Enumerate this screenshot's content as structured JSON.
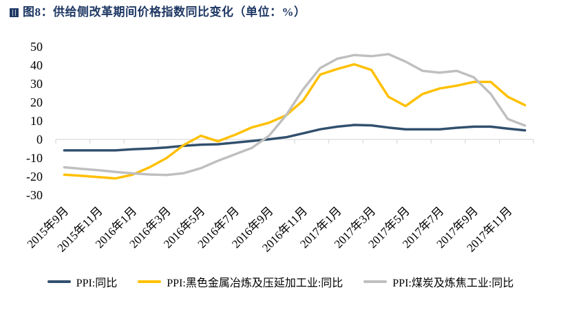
{
  "title": {
    "text": "图8：供给侧改革期间价格指数同比变化（单位：%）"
  },
  "colors": {
    "title_navy": "#1f3864",
    "axis_line": "#d9d9d9",
    "tick_text": "#000000"
  },
  "legend": {
    "items": [
      {
        "label": "PPI:同比",
        "color": "#32506e"
      },
      {
        "label": "PPI:黑色金属冶炼及压延加工业:同比",
        "color": "#ffc000"
      },
      {
        "label": "PPI:煤炭及炼焦工业:同比",
        "color": "#bfbfbf"
      }
    ]
  },
  "chart_data": {
    "type": "line",
    "title": "图8：供给侧改革期间价格指数同比变化（单位：%）",
    "unit": "%",
    "x": [
      "2015年9月",
      "2015年10月",
      "2015年11月",
      "2015年12月",
      "2016年1月",
      "2016年2月",
      "2016年3月",
      "2016年4月",
      "2016年5月",
      "2016年6月",
      "2016年7月",
      "2016年8月",
      "2016年9月",
      "2016年10月",
      "2016年11月",
      "2016年12月",
      "2017年1月",
      "2017年2月",
      "2017年3月",
      "2017年4月",
      "2017年5月",
      "2017年6月",
      "2017年7月",
      "2017年8月",
      "2017年9月",
      "2017年10月",
      "2017年11月",
      "2017年12月"
    ],
    "x_tick_labels": [
      "2015年9月",
      "2015年11月",
      "2016年1月",
      "2016年3月",
      "2016年5月",
      "2016年7月",
      "2016年9月",
      "2016年11月",
      "2017年1月",
      "2017年3月",
      "2017年5月",
      "2017年7月",
      "2017年9月",
      "2017年11月"
    ],
    "series": [
      {
        "name": "PPI:同比",
        "color": "#32506e",
        "values": [
          -5.9,
          -5.9,
          -5.9,
          -5.9,
          -5.3,
          -4.9,
          -4.3,
          -3.4,
          -2.8,
          -2.6,
          -1.7,
          -0.8,
          0.1,
          1.2,
          3.3,
          5.5,
          6.9,
          7.8,
          7.6,
          6.4,
          5.5,
          5.5,
          5.5,
          6.3,
          6.9,
          6.9,
          5.8,
          4.9
        ]
      },
      {
        "name": "PPI:黑色金属冶炼及压延加工业:同比",
        "color": "#ffc000",
        "values": [
          -19.0,
          -19.6,
          -20.3,
          -21.0,
          -19.0,
          -15.0,
          -10.0,
          -3.0,
          2.0,
          -1.0,
          2.5,
          6.5,
          9.0,
          13.0,
          21.0,
          35.0,
          38.0,
          40.5,
          37.5,
          23.0,
          18.0,
          24.5,
          27.5,
          29.0,
          31.0,
          31.0,
          23.0,
          18.5
        ]
      },
      {
        "name": "PPI:煤炭及炼焦工业:同比",
        "color": "#bfbfbf",
        "values": [
          -15.0,
          -15.8,
          -16.6,
          -17.5,
          -18.3,
          -18.9,
          -19.2,
          -18.2,
          -15.5,
          -11.5,
          -8.0,
          -4.5,
          2.0,
          13.0,
          27.0,
          38.5,
          43.5,
          45.5,
          44.9,
          46.0,
          42.0,
          37.0,
          36.0,
          37.0,
          33.5,
          24.5,
          11.0,
          7.5
        ]
      }
    ],
    "ylim": [
      -30,
      50
    ],
    "y_ticks": [
      50,
      40,
      30,
      20,
      10,
      0,
      -10,
      -20,
      -30
    ],
    "grid": false,
    "legend_position": "bottom"
  }
}
